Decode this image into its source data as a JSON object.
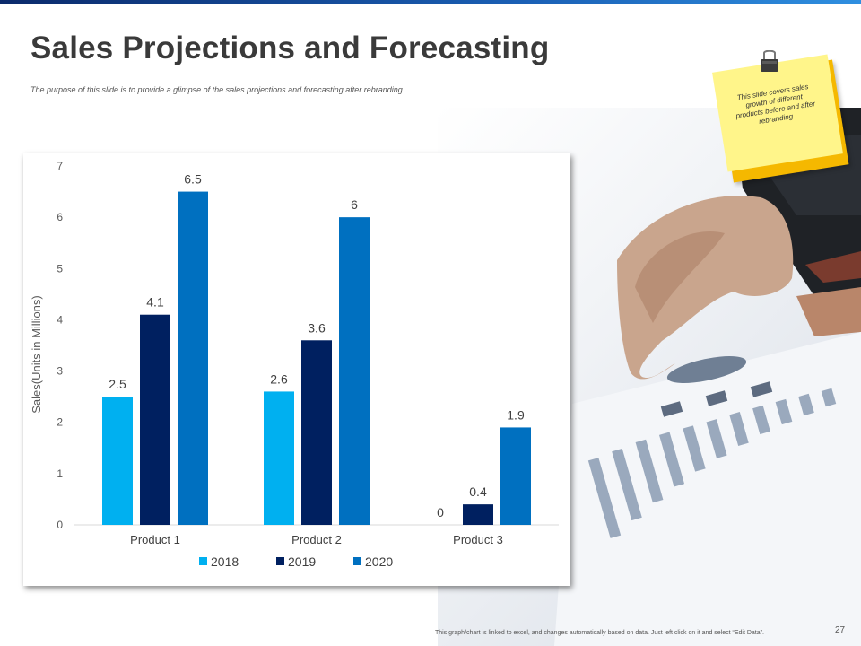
{
  "slide": {
    "title": "Sales Projections and Forecasting",
    "subtitle": "The purpose of this slide is to provide a glimpse of the sales projections and forecasting after rebranding.",
    "note": "This slide covers sales growth of different products before and after rebranding.",
    "footer": "This graph/chart is linked to excel, and changes automatically based on data. Just left click on it and select “Edit Data”.",
    "page_number": "27"
  },
  "chart_data": {
    "type": "bar",
    "categories": [
      "Product 1",
      "Product 2",
      "Product 3"
    ],
    "series": [
      {
        "name": "2018",
        "values": [
          2.5,
          2.6,
          0
        ],
        "color": "#00b0f0"
      },
      {
        "name": "2019",
        "values": [
          4.1,
          3.6,
          0.4
        ],
        "color": "#002060"
      },
      {
        "name": "2020",
        "values": [
          6.5,
          6,
          1.9
        ],
        "color": "#0070c0"
      }
    ],
    "data_labels": [
      [
        "2.5",
        "2.6",
        "0"
      ],
      [
        "4.1",
        "3.6",
        "0.4"
      ],
      [
        "6.5",
        "6",
        "1.9"
      ]
    ],
    "yticks": [
      "0",
      "1",
      "2",
      "3",
      "4",
      "5",
      "6",
      "7"
    ],
    "ylabel": "Sales(Units in Millions)",
    "ylim": [
      0,
      7
    ],
    "grid": false,
    "legend": "bottom"
  }
}
